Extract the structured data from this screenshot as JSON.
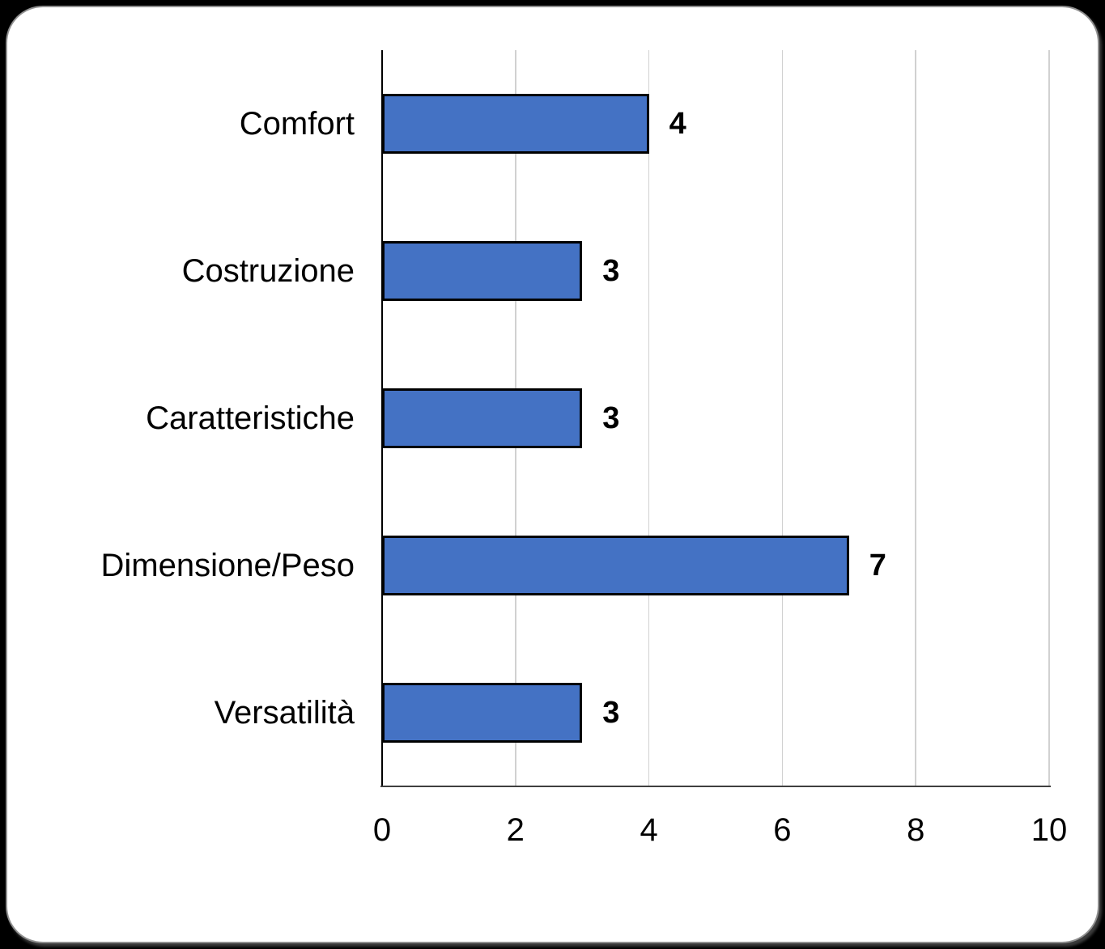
{
  "chart_data": {
    "type": "bar",
    "orientation": "horizontal",
    "title": "",
    "categories": [
      "Comfort",
      "Costruzione",
      "Caratteristiche",
      "Dimensione/Peso",
      "Versatilità"
    ],
    "values": [
      4,
      3,
      3,
      7,
      3
    ],
    "data_labels": [
      "4",
      "3",
      "3",
      "7",
      "3"
    ],
    "xlabel": "",
    "ylabel": "",
    "xlim": [
      0,
      10
    ],
    "xticks": [
      0,
      2,
      4,
      6,
      8,
      10
    ],
    "grid": true,
    "legend": "none",
    "colors": {
      "bar_fill": "#4472C4",
      "bar_border": "#000000",
      "gridline": "#D1D1D1",
      "y_axis_line": "#000000",
      "x_axis_line": "#3F3F3F",
      "label_text": "#000000",
      "card_background": "#FFFFFF",
      "card_border": "#8F8F8F",
      "page_background": "#000000"
    }
  }
}
